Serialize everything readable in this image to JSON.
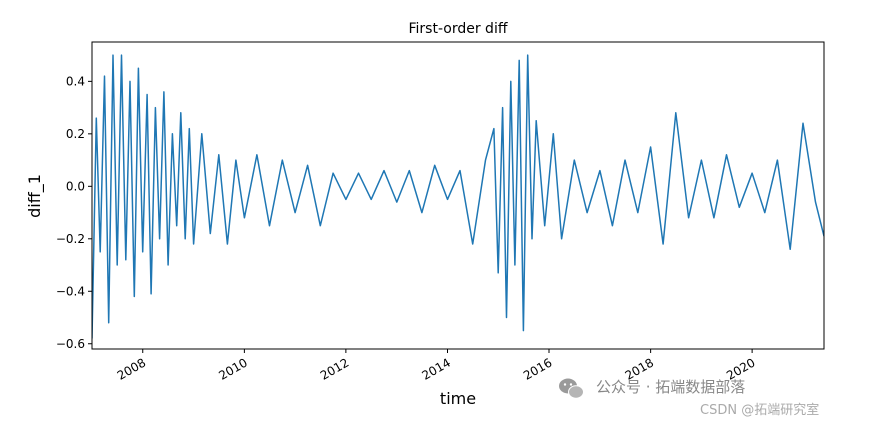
{
  "chart_data": {
    "type": "line",
    "title": "First-order diff",
    "xlabel": "time",
    "ylabel": "diff_1",
    "xlim": [
      "2007-01-01",
      "2021-06-01"
    ],
    "ylim": [
      -0.62,
      0.55
    ],
    "xticks": [
      "2008",
      "2010",
      "2012",
      "2014",
      "2016",
      "2018",
      "2020"
    ],
    "yticks": [
      "0.4",
      "0.2",
      "0.0",
      "−0.2",
      "−0.4",
      "−0.6"
    ],
    "ytick_values": [
      0.4,
      0.2,
      0.0,
      -0.2,
      -0.4,
      -0.6
    ],
    "grid": false,
    "color": "#1f77b4",
    "series": [
      {
        "x": [
          "2007-01",
          "2007-02",
          "2007-03",
          "2007-04",
          "2007-05",
          "2007-06",
          "2007-07",
          "2007-08",
          "2007-09",
          "2007-10",
          "2007-11",
          "2007-12",
          "2008-01",
          "2008-02",
          "2008-03",
          "2008-04",
          "2008-05",
          "2008-06",
          "2008-07",
          "2008-08",
          "2008-09",
          "2008-10",
          "2008-11",
          "2008-12",
          "2009-01",
          "2009-03",
          "2009-05",
          "2009-07",
          "2009-09",
          "2009-11",
          "2010-01",
          "2010-04",
          "2010-07",
          "2010-10",
          "2011-01",
          "2011-04",
          "2011-07",
          "2011-10",
          "2012-01",
          "2012-04",
          "2012-07",
          "2012-10",
          "2013-01",
          "2013-04",
          "2013-07",
          "2013-10",
          "2014-01",
          "2014-04",
          "2014-07",
          "2014-10",
          "2014-12",
          "2015-01",
          "2015-02",
          "2015-03",
          "2015-04",
          "2015-05",
          "2015-06",
          "2015-07",
          "2015-08",
          "2015-09",
          "2015-10",
          "2015-12",
          "2016-02",
          "2016-04",
          "2016-07",
          "2016-10",
          "2017-01",
          "2017-04",
          "2017-07",
          "2017-10",
          "2018-01",
          "2018-04",
          "2018-07",
          "2018-10",
          "2019-01",
          "2019-04",
          "2019-07",
          "2019-10",
          "2020-01",
          "2020-04",
          "2020-07",
          "2020-10",
          "2021-01",
          "2021-04",
          "2021-06"
        ],
        "y": [
          -0.58,
          0.26,
          -0.25,
          0.42,
          -0.52,
          0.5,
          -0.3,
          0.5,
          -0.28,
          0.4,
          -0.42,
          0.45,
          -0.25,
          0.35,
          -0.41,
          0.3,
          -0.2,
          0.36,
          -0.3,
          0.2,
          -0.15,
          0.28,
          -0.2,
          0.22,
          -0.22,
          0.2,
          -0.18,
          0.12,
          -0.22,
          0.1,
          -0.12,
          0.12,
          -0.15,
          0.1,
          -0.1,
          0.08,
          -0.15,
          0.05,
          -0.05,
          0.05,
          -0.05,
          0.06,
          -0.06,
          0.06,
          -0.1,
          0.08,
          -0.05,
          0.06,
          -0.22,
          0.1,
          0.22,
          -0.33,
          0.3,
          -0.5,
          0.4,
          -0.3,
          0.48,
          -0.55,
          0.5,
          -0.2,
          0.25,
          -0.15,
          0.2,
          -0.2,
          0.1,
          -0.1,
          0.06,
          -0.15,
          0.1,
          -0.1,
          0.15,
          -0.22,
          0.28,
          -0.12,
          0.1,
          -0.12,
          0.12,
          -0.08,
          0.05,
          -0.1,
          0.1,
          -0.24,
          0.24,
          -0.06,
          -0.19
        ]
      }
    ]
  },
  "watermark": {
    "line1": "公众号 · 拓端数据部落",
    "line2": "CSDN @拓端研究室",
    "icon": "wechat-icon"
  }
}
